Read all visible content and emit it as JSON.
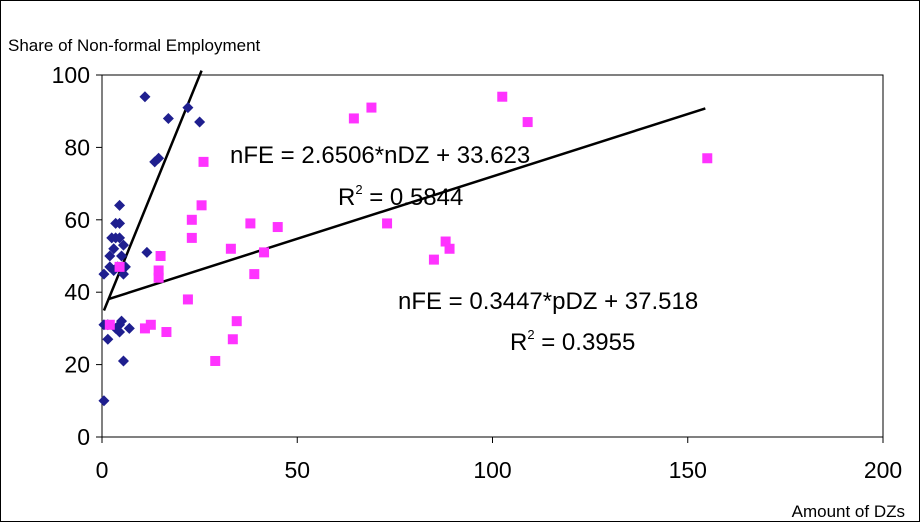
{
  "chart_data": {
    "type": "scatter",
    "title": "",
    "ylabel": "Share of Non-formal Employment",
    "xlabel": "Amount of DZs",
    "xlim": [
      0,
      200
    ],
    "ylim": [
      0,
      100
    ],
    "x_ticks": [
      "0",
      "50",
      "100",
      "150",
      "200"
    ],
    "y_ticks": [
      "0",
      "20",
      "40",
      "60",
      "80",
      "100"
    ],
    "grid": false,
    "legend": "none",
    "series": [
      {
        "marker": "diamond",
        "color": "#1f1f8f",
        "points": [
          [
            0.5,
            10
          ],
          [
            0.5,
            31
          ],
          [
            0.5,
            45
          ],
          [
            1.5,
            27
          ],
          [
            1.5,
            31
          ],
          [
            2,
            47
          ],
          [
            2,
            50
          ],
          [
            2.5,
            55
          ],
          [
            3,
            52
          ],
          [
            3,
            46
          ],
          [
            3.5,
            59
          ],
          [
            3.5,
            55
          ],
          [
            3.5,
            30
          ],
          [
            4,
            47
          ],
          [
            4.5,
            64
          ],
          [
            4.5,
            59
          ],
          [
            4.5,
            55
          ],
          [
            4.5,
            31
          ],
          [
            4.5,
            29
          ],
          [
            5,
            50
          ],
          [
            5,
            32
          ],
          [
            5.5,
            53
          ],
          [
            5.5,
            45
          ],
          [
            6,
            47
          ],
          [
            5.5,
            21
          ],
          [
            7,
            30
          ],
          [
            11,
            94
          ],
          [
            11.5,
            51
          ],
          [
            13.5,
            76
          ],
          [
            14.5,
            77
          ],
          [
            17,
            88
          ],
          [
            22,
            91
          ],
          [
            25,
            87
          ]
        ]
      },
      {
        "marker": "square",
        "color": "#ff33ff",
        "points": [
          [
            2,
            31
          ],
          [
            4.5,
            47
          ],
          [
            11,
            30
          ],
          [
            12.5,
            31
          ],
          [
            14.5,
            44
          ],
          [
            14.5,
            46
          ],
          [
            15,
            50
          ],
          [
            16.5,
            29
          ],
          [
            22,
            38
          ],
          [
            23,
            55
          ],
          [
            23,
            60
          ],
          [
            25.5,
            64
          ],
          [
            26,
            76
          ],
          [
            29,
            21
          ],
          [
            33,
            52
          ],
          [
            33.5,
            27
          ],
          [
            34.5,
            32
          ],
          [
            38,
            59
          ],
          [
            39,
            45
          ],
          [
            41.5,
            51
          ],
          [
            45,
            58
          ],
          [
            64.5,
            88
          ],
          [
            69,
            91
          ],
          [
            73,
            59
          ],
          [
            85,
            49
          ],
          [
            88,
            54
          ],
          [
            89,
            52
          ],
          [
            102.5,
            94
          ],
          [
            109,
            87
          ],
          [
            155,
            77
          ]
        ]
      }
    ],
    "trendlines": [
      {
        "slope": 2.6506,
        "intercept": 33.623,
        "x_range": [
          0.5,
          25.5
        ]
      },
      {
        "slope": 0.3447,
        "intercept": 37.518,
        "x_range": [
          1.5,
          154.5
        ]
      }
    ],
    "annotations": {
      "eq1": "nFE = 2.6506*nDZ + 33.623",
      "r2_1_base": "R",
      "r2_1_exp": "2",
      "r2_1_rest": " = 0.5844",
      "eq2": "nFE = 0.3447*pDZ + 37.518",
      "r2_2_base": "R",
      "r2_2_exp": "2",
      "r2_2_rest": " = 0.3955"
    }
  }
}
